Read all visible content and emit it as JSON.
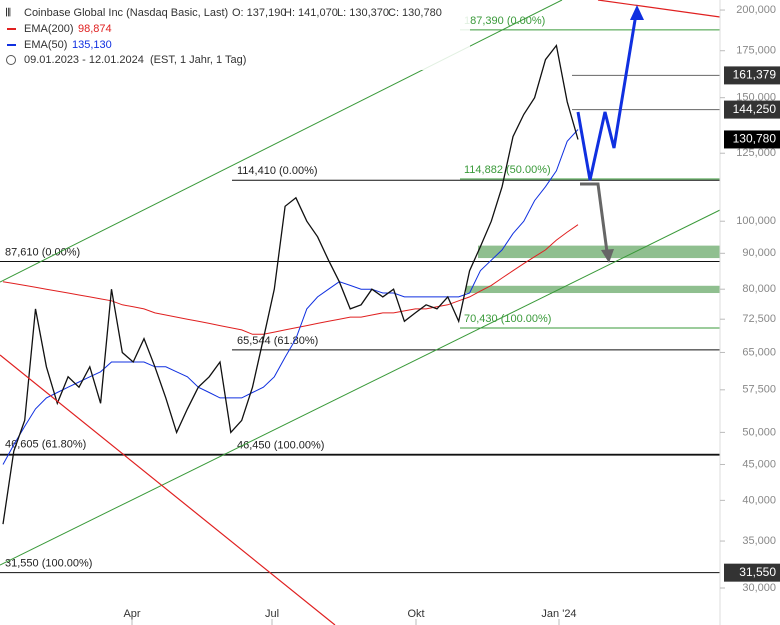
{
  "chart_data": {
    "type": "line",
    "title": "Coinbase Global Inc (Nasdaq Basic, Last)",
    "ohlc": [
      "O: 137,190",
      "H: 141,070",
      "L: 130,370",
      "C: 130,780"
    ],
    "subtitle": [
      "09.01.2023 - 12.01.2024",
      "(EST, 1 Jahr, 1 Tag)"
    ],
    "log_scale": true,
    "ylim": [
      26.57,
      206.7
    ],
    "yticks": [
      {
        "value": 200,
        "label": "200,000"
      },
      {
        "value": 175,
        "label": "175,000"
      },
      {
        "value": 150,
        "label": "150,000"
      },
      {
        "value": 125,
        "label": "125,000"
      },
      {
        "value": 100,
        "label": "100,000"
      },
      {
        "value": 90,
        "label": "90,000"
      },
      {
        "value": 80,
        "label": "80,000"
      },
      {
        "value": 72.5,
        "label": "72,500"
      },
      {
        "value": 65,
        "label": "65,000"
      },
      {
        "value": 57.5,
        "label": "57,500"
      },
      {
        "value": 50,
        "label": "50,000"
      },
      {
        "value": 45,
        "label": "45,000"
      },
      {
        "value": 40,
        "label": "40,000"
      },
      {
        "value": 35,
        "label": "35,000"
      },
      {
        "value": 30,
        "label": "30,000"
      }
    ],
    "xtick_labels": [
      "Apr",
      "Jul",
      "Okt",
      "Jan '24"
    ],
    "series": [
      {
        "name": "Coinbase Global Inc",
        "color": "#111111",
        "values": [
          37,
          47,
          52,
          75,
          62,
          55,
          60,
          58,
          62,
          55,
          80,
          65,
          63,
          68,
          62,
          56,
          50,
          54,
          58,
          60,
          63,
          50,
          52,
          58,
          68,
          80,
          105,
          108,
          100,
          95,
          88,
          82,
          75,
          76,
          80,
          78,
          80,
          72,
          74,
          76,
          75,
          78,
          72,
          85,
          92,
          100,
          112,
          132,
          142,
          150,
          170,
          178,
          148,
          130.78
        ]
      },
      {
        "name": "EMA(200)",
        "legend_value": "98,874",
        "color": "#e02020",
        "values": [
          82,
          81.5,
          81,
          80.5,
          80,
          79.5,
          79,
          78.5,
          78,
          77.5,
          77,
          76,
          75.5,
          75,
          74,
          73.5,
          73,
          72.5,
          72,
          71.5,
          71,
          70.5,
          70,
          69,
          69,
          69.5,
          70,
          70.5,
          71,
          71.5,
          72,
          72.5,
          73,
          73,
          73.5,
          74,
          74,
          74.5,
          75,
          75,
          75.5,
          76,
          77,
          78,
          79.5,
          81,
          83,
          85,
          87,
          89,
          91,
          94,
          96.5,
          98.874
        ]
      },
      {
        "name": "EMA(50)",
        "legend_value": "135,130",
        "color": "#1030e0",
        "values": [
          45,
          48,
          51,
          54,
          56,
          57,
          58,
          59,
          60,
          61,
          63,
          63,
          63,
          63,
          62,
          62,
          61,
          60,
          58,
          57,
          56,
          56,
          56,
          57,
          58,
          60,
          64,
          68,
          75,
          78,
          80,
          82,
          81,
          80,
          80,
          79,
          79,
          78,
          78,
          78,
          78,
          78,
          78,
          79,
          85,
          88,
          91,
          96,
          100,
          107,
          112,
          118,
          130,
          135.13
        ]
      }
    ],
    "levels": [
      {
        "value": 187.39,
        "label": "187,390 (0.00%)",
        "color": "#3a9a3a"
      },
      {
        "value": 114.882,
        "label": "114,882 (50.00%)",
        "color": "#3a9a3a"
      },
      {
        "value": 114.41,
        "label": "114,410 (0.00%)",
        "color": "#111111"
      },
      {
        "value": 87.61,
        "label": "87,610 (0.00%)",
        "color": "#111111"
      },
      {
        "value": 70.43,
        "label": "70,430 (100.00%)",
        "color": "#3a9a3a"
      },
      {
        "value": 65.544,
        "label": "65,544 (61.80%)",
        "color": "#111111"
      },
      {
        "value": 46.605,
        "label": "46,605 (61.80%)",
        "color": "#111111"
      },
      {
        "value": 46.45,
        "label": "46,450 (100.00%)",
        "color": "#111111"
      },
      {
        "value": 31.55,
        "label": "31,550 (100.00%)",
        "color": "#111111"
      }
    ],
    "zones": [
      {
        "values": [
          88.6,
          92.3
        ],
        "color": "#8fbf8f"
      },
      {
        "values": [
          79,
          80.9
        ],
        "color": "#8fbf8f"
      }
    ],
    "price_labels": [
      {
        "value": 161.379,
        "label": "161,379",
        "color": "#333333"
      },
      {
        "value": 144.25,
        "label": "144,250",
        "color": "#333333"
      },
      {
        "value": 130.78,
        "label": "130,780",
        "color": "#000000"
      },
      {
        "value": 31.55,
        "label": "31,550",
        "color": "#333333"
      }
    ]
  }
}
